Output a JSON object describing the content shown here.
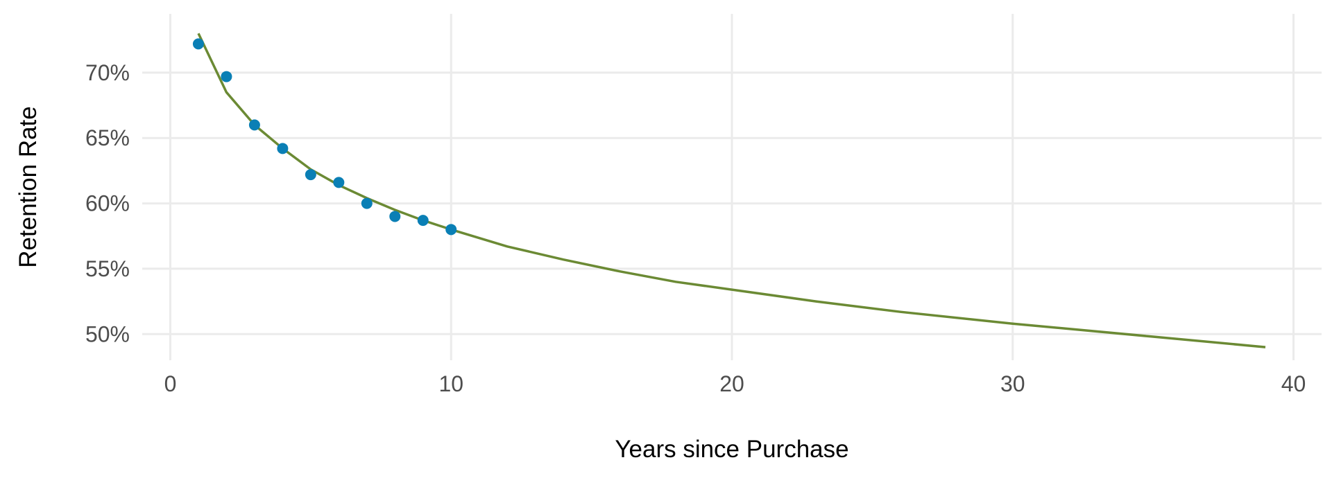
{
  "chart_data": {
    "type": "scatter",
    "title": "",
    "xlabel": "Years since Purchase",
    "ylabel": "Retention Rate",
    "xlim": [
      -1,
      41
    ],
    "ylim": [
      0.48,
      0.745
    ],
    "x_ticks": [
      0,
      10,
      20,
      30,
      40
    ],
    "x_tick_labels": [
      "0",
      "10",
      "20",
      "30",
      "40"
    ],
    "y_ticks": [
      0.5,
      0.55,
      0.6,
      0.65,
      0.7
    ],
    "y_tick_labels": [
      "50%",
      "55%",
      "60%",
      "65%",
      "70%"
    ],
    "grid": true,
    "legend": "none",
    "series": [
      {
        "type": "scatter",
        "color": "#0a7fb5",
        "x": [
          1,
          2,
          3,
          4,
          5,
          6,
          7,
          8,
          9,
          10
        ],
        "y": [
          0.722,
          0.697,
          0.66,
          0.642,
          0.622,
          0.616,
          0.6,
          0.59,
          0.587,
          0.58
        ]
      },
      {
        "type": "line",
        "color": "#6b8a34",
        "x": [
          1,
          2,
          3,
          4,
          5,
          6,
          7,
          8,
          9,
          10,
          12,
          14,
          16,
          18,
          20,
          23,
          26,
          30,
          35,
          39
        ],
        "y": [
          0.73,
          0.685,
          0.66,
          0.642,
          0.626,
          0.614,
          0.604,
          0.595,
          0.587,
          0.58,
          0.567,
          0.557,
          0.548,
          0.54,
          0.534,
          0.525,
          0.517,
          0.508,
          0.498,
          0.49
        ]
      }
    ]
  }
}
